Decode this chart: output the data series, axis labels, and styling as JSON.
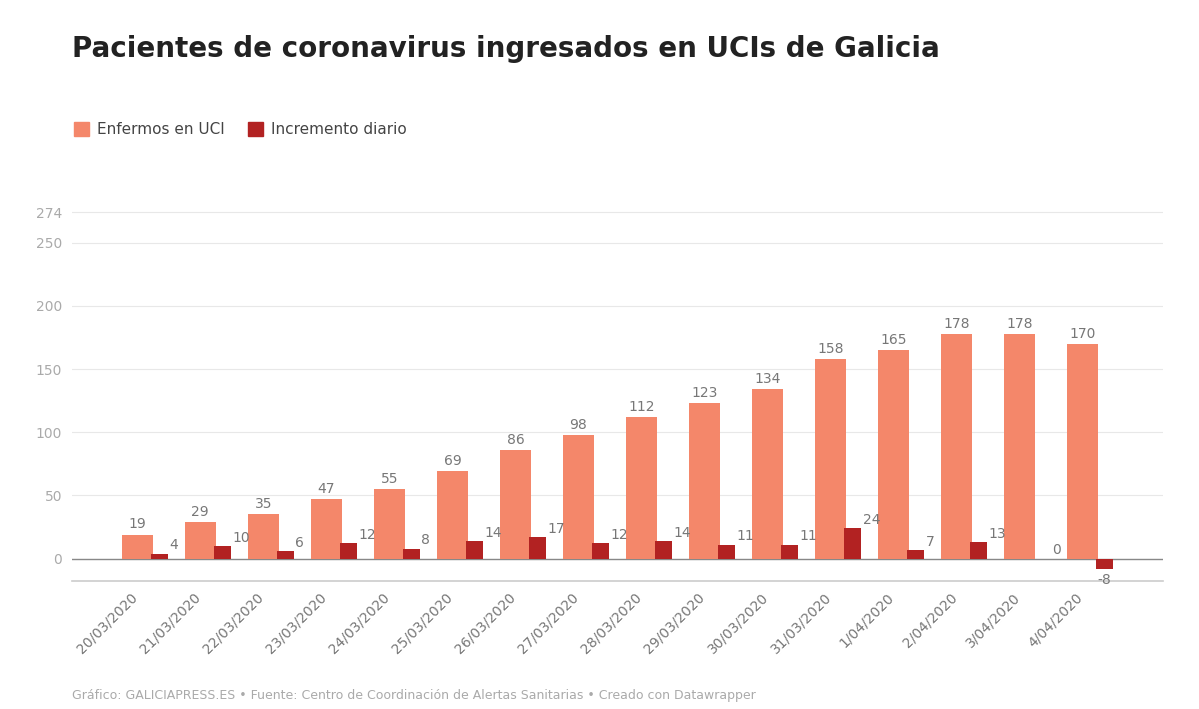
{
  "title": "Pacientes de coronavirus ingresados en UCIs de Galicia",
  "dates": [
    "20/03/2020",
    "21/03/2020",
    "22/03/2020",
    "23/03/2020",
    "24/03/2020",
    "25/03/2020",
    "26/03/2020",
    "27/03/2020",
    "28/03/2020",
    "29/03/2020",
    "30/03/2020",
    "31/03/2020",
    "1/04/2020",
    "2/04/2020",
    "3/04/2020",
    "4/04/2020"
  ],
  "uci_values": [
    19,
    29,
    35,
    47,
    55,
    69,
    86,
    98,
    112,
    123,
    134,
    158,
    165,
    178,
    178,
    170
  ],
  "increment_values": [
    4,
    10,
    6,
    12,
    8,
    14,
    17,
    12,
    14,
    11,
    11,
    24,
    7,
    13,
    0,
    -8
  ],
  "uci_color": "#F4876A",
  "increment_color": "#B22222",
  "legend_uci": "Enfermos en UCI",
  "legend_increment": "Incremento diario",
  "yticks": [
    0,
    50,
    100,
    150,
    200,
    250,
    274
  ],
  "ylim_min": -18,
  "ylim_max": 285,
  "footer": "Gráfico: GALICIAPRESS.ES • Fuente: Centro de Coordinación de Alertas Sanitarias • Creado con Datawrapper",
  "background_color": "#ffffff",
  "title_fontsize": 20,
  "label_fontsize": 10,
  "tick_fontsize": 10,
  "footer_fontsize": 9
}
